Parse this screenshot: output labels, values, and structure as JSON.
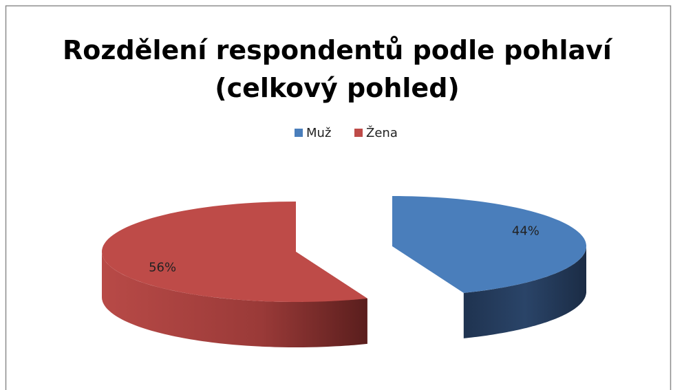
{
  "chart_data": {
    "type": "pie",
    "title": "Rozdělení respondentů podle pohlaví (celkový pohled)",
    "categories": [
      "Muž",
      "Žena"
    ],
    "values": [
      44,
      56
    ],
    "value_labels": [
      "44%",
      "56%"
    ],
    "colors": [
      "#4a7ebb",
      "#be4b48"
    ],
    "legend": "top",
    "3d": true,
    "exploded": true
  }
}
